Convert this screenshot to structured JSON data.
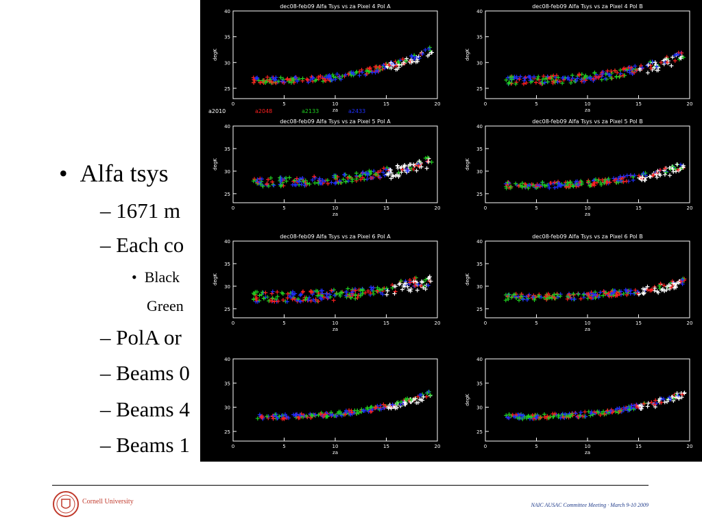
{
  "slide": {
    "bullets": [
      {
        "level": 1,
        "text": "Alfa tsys"
      },
      {
        "level": 2,
        "text": "– 1671 m"
      },
      {
        "level": 2,
        "text": "– Each co"
      },
      {
        "level": 3,
        "text": "Black"
      },
      {
        "level": 3,
        "text": "Green"
      },
      {
        "level": 2,
        "text": "– PolA or"
      },
      {
        "level": 2,
        "text": "– Beams 0"
      },
      {
        "level": 2,
        "text": "– Beams 4"
      },
      {
        "level": 2,
        "text": "– Beams 1"
      }
    ],
    "bullet_dot": "•",
    "footer": {
      "university": "Cornell University",
      "meeting": "NAIC AUSAC  Committee Meeting · March  9-10 2009"
    }
  },
  "chart_data": [
    {
      "type": "scatter",
      "title": "dec08-feb09 Alfa Tsys vs za Pixel 4 Pol A",
      "xlabel": "za",
      "ylabel": "degK",
      "xlim": [
        0,
        20
      ],
      "ylim": [
        23,
        40
      ],
      "base": 26.5,
      "rise": 6,
      "spread": 1.2,
      "legend": [
        "a2010",
        "a2048",
        "a2133",
        "a2433"
      ]
    },
    {
      "type": "scatter",
      "title": "dec08-feb09 Alfa Tsys vs za Pixel 4 Pol B",
      "xlabel": "za",
      "ylabel": "degK",
      "xlim": [
        0,
        20
      ],
      "ylim": [
        23,
        40
      ],
      "base": 26.5,
      "rise": 5,
      "spread": 1.6
    },
    {
      "type": "scatter",
      "title": "dec08-feb09 Alfa Tsys vs za Pixel 5 Pol A",
      "xlabel": "za",
      "ylabel": "degK",
      "xlim": [
        0,
        20
      ],
      "ylim": [
        23,
        40
      ],
      "base": 27.5,
      "rise": 5,
      "spread": 2.0
    },
    {
      "type": "scatter",
      "title": "dec08-feb09 Alfa Tsys vs za Pixel 5 Pol B",
      "xlabel": "za",
      "ylabel": "degK",
      "xlim": [
        0,
        20
      ],
      "ylim": [
        23,
        40
      ],
      "base": 26.8,
      "rise": 4.5,
      "spread": 1.4
    },
    {
      "type": "scatter",
      "title": "dec08-feb09 Alfa Tsys vs za Pixel 6 Pol A",
      "xlabel": "za",
      "ylabel": "degK",
      "xlim": [
        0,
        20
      ],
      "ylim": [
        23,
        40
      ],
      "base": 27.5,
      "rise": 4,
      "spread": 2.4
    },
    {
      "type": "scatter",
      "title": "dec08-feb09 Alfa Tsys vs za Pixel 6 Pol B",
      "xlabel": "za",
      "ylabel": "degK",
      "xlim": [
        0,
        20
      ],
      "ylim": [
        23,
        40
      ],
      "base": 27.5,
      "rise": 3.5,
      "spread": 1.4
    },
    {
      "type": "scatter",
      "title": "",
      "xlabel": "za",
      "ylabel": "",
      "xlim": [
        0,
        20
      ],
      "ylim": [
        23,
        40
      ],
      "base": 28,
      "rise": 5,
      "spread": 1.0
    },
    {
      "type": "scatter",
      "title": "",
      "xlabel": "za",
      "ylabel": "degK",
      "xlim": [
        0,
        20
      ],
      "ylim": [
        23,
        40
      ],
      "base": 28,
      "rise": 5,
      "spread": 1.0
    }
  ],
  "series_colors": {
    "a2010": "#ffffff",
    "a2048": "#ff2020",
    "a2133": "#20d020",
    "a2433": "#2030ff"
  },
  "legend_colors": [
    "#ffffff",
    "#ff2020",
    "#20d020",
    "#2030ff"
  ],
  "x_ticks": [
    "0",
    "5",
    "10",
    "15",
    "20"
  ],
  "y_ticks": [
    "25",
    "30",
    "35",
    "40"
  ]
}
